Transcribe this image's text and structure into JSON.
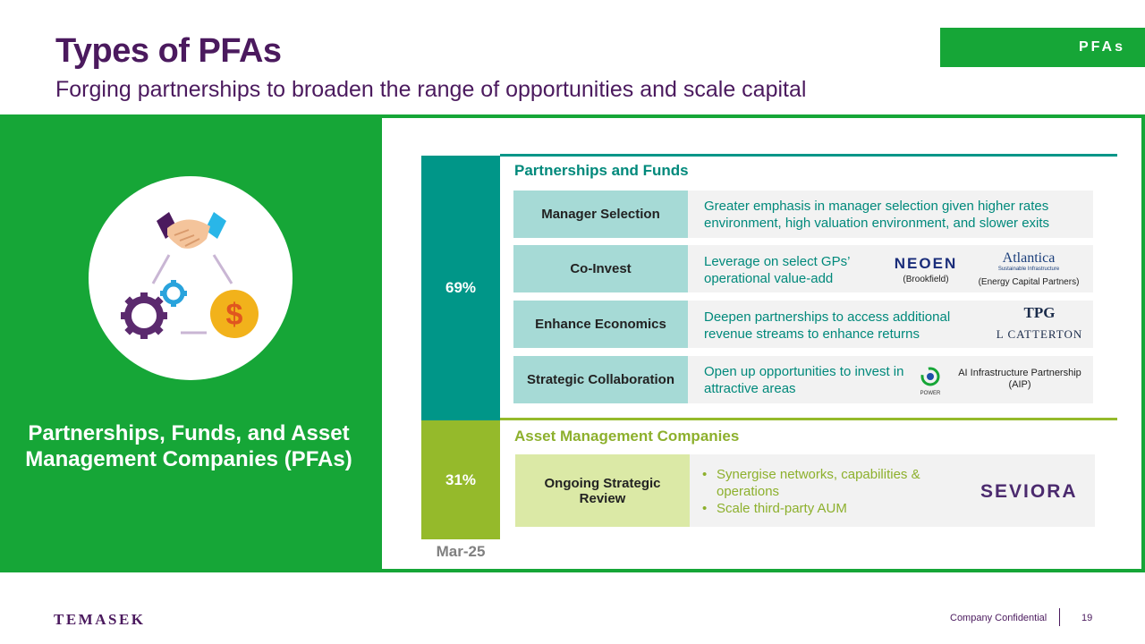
{
  "header": {
    "title": "Types of PFAs",
    "subtitle": "Forging partnerships to broaden the range of opportunities and scale capital",
    "tag": "PFAs"
  },
  "left_panel": {
    "label": "Partnerships, Funds, and Asset Management Companies (PFAs)",
    "icon": "handshake-gears-dollar-icon"
  },
  "bars": {
    "partnerships_pct": "69%",
    "asset_mgmt_pct": "31%",
    "date": "Mar-25"
  },
  "partnerships": {
    "heading": "Partnerships and Funds",
    "rows": [
      {
        "label": "Manager Selection",
        "desc": "Greater emphasis in manager selection given higher rates environment, high valuation environment, and slower exits"
      },
      {
        "label": "Co-Invest",
        "desc": "Leverage on select GPs’ operational value-add",
        "logos": [
          {
            "name": "NEOEN",
            "caption": "(Brookfield)"
          },
          {
            "name": "Atlantica",
            "sub": "Sustainable Infrastructure",
            "caption": "(Energy Capital Partners)"
          }
        ]
      },
      {
        "label": "Enhance Economics",
        "desc": "Deepen partnerships to access additional revenue streams to enhance returns",
        "logos": [
          {
            "name": "TPG"
          },
          {
            "name": "L CATTERTON"
          }
        ]
      },
      {
        "label": "Strategic Collaboration",
        "desc": "Open up opportunities to invest in attractive areas",
        "logos": [
          {
            "name": "POWER"
          },
          {
            "name": "AI Infrastructure Partnership (AIP)"
          }
        ]
      }
    ]
  },
  "asset_mgmt": {
    "heading": "Asset Management Companies",
    "row": {
      "label": "Ongoing Strategic Review",
      "bullets": [
        "Synergise networks, capabilities & operations",
        "Scale third-party AUM"
      ],
      "logo": "SEVIORA"
    }
  },
  "footer": {
    "logo": "TEMASEK",
    "confidential": "Company Confidential",
    "page": "19"
  },
  "colors": {
    "purple": "#4b1a5e",
    "green": "#16a637",
    "teal": "#009688",
    "lime": "#95ba2b"
  }
}
